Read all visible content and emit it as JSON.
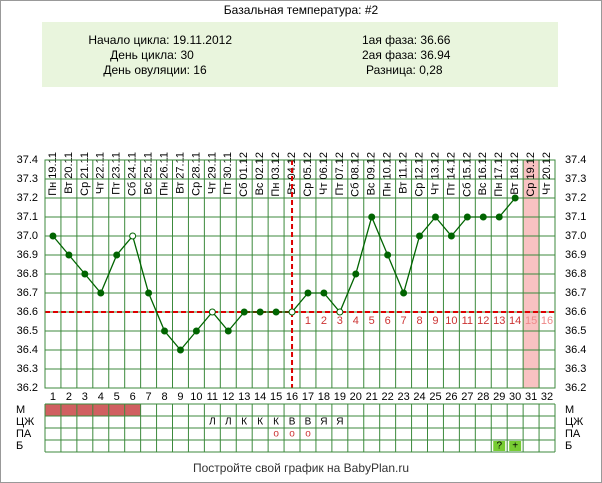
{
  "header": {
    "cycle_start": "Начало цикла: 19.11.2012",
    "cycle_day": "День цикла: 30",
    "ovulation": "День овуляции: 16",
    "phase1": "1ая фаза: 36.66",
    "phase2": "2ая фаза: 36.94",
    "difference": "Разница: 0,28"
  },
  "chart_data": {
    "type": "line",
    "title": "Базальная температура: #2",
    "categories": [
      1,
      2,
      3,
      4,
      5,
      6,
      7,
      8,
      9,
      10,
      11,
      12,
      13,
      14,
      15,
      16,
      17,
      18,
      19,
      20,
      21,
      22,
      23,
      24,
      25,
      26,
      27,
      28,
      29,
      30,
      31,
      32
    ],
    "dates": [
      "Пн 19.11",
      "Вт 20.11",
      "Ср 21.11",
      "Чт 22.11",
      "Пт 23.11",
      "Сб 24.11",
      "Вс 25.11",
      "Пн 26.11",
      "Вт 27.11",
      "Ср 28.11",
      "Чт 29.11",
      "Пт 30.11",
      "Сб 01.12",
      "Вс 02.12",
      "Пн 03.12",
      "Вт 04.12",
      "Ср 05.12",
      "Чт 06.12",
      "Пт 07.12",
      "Сб 08.12",
      "Вс 09.12",
      "Пн 10.12",
      "Вт 11.12",
      "Ср 12.12",
      "Чт 13.12",
      "Пт 14.12",
      "Сб 15.12",
      "Вс 16.12",
      "Пн 17.12",
      "Вт 18.12",
      "Ср 19.12",
      "Чт 20.12"
    ],
    "series": [
      {
        "color": "#006400",
        "values": [
          37.0,
          36.9,
          36.8,
          36.7,
          36.9,
          37.0,
          36.7,
          36.5,
          36.4,
          36.5,
          36.6,
          36.5,
          36.6,
          36.6,
          36.6,
          36.6,
          36.7,
          36.7,
          36.6,
          36.8,
          37.1,
          36.9,
          36.7,
          37.0,
          37.1,
          37.0,
          37.1,
          37.1,
          37.1,
          37.2,
          null,
          null
        ]
      }
    ],
    "hollow_days": [
      6,
      11,
      16,
      19
    ],
    "coverline": 36.6,
    "ovulation_day": 16,
    "highlight_day": 31,
    "luteal_days": [
      1,
      2,
      3,
      4,
      5,
      6,
      7,
      8,
      9,
      10,
      11,
      12,
      13,
      14,
      15,
      16
    ],
    "ylim": [
      36.2,
      37.4
    ],
    "yticks": [
      36.2,
      36.3,
      36.4,
      36.5,
      36.6,
      36.7,
      36.8,
      36.9,
      {
        "value": 37.0,
        "label": "37.0"
      },
      37.1,
      37.2,
      37.3,
      37.4
    ],
    "grid": true
  },
  "table": {
    "rows": [
      {
        "label": "М",
        "days": [
          1,
          2,
          3,
          4,
          5,
          6
        ]
      },
      {
        "label": "ЦЖ",
        "cells": [
          null,
          null,
          null,
          null,
          null,
          null,
          null,
          null,
          null,
          null,
          "Л",
          "Л",
          "К",
          "К",
          "К",
          "В",
          "В",
          "Я",
          "Я",
          null,
          null,
          null,
          null,
          null,
          null,
          null,
          null,
          null,
          null,
          null,
          null,
          null
        ]
      },
      {
        "label": "ПА",
        "cells": [
          null,
          null,
          null,
          null,
          null,
          null,
          null,
          null,
          null,
          null,
          null,
          null,
          null,
          null,
          "о",
          "о",
          "о",
          null,
          null,
          null,
          null,
          null,
          null,
          null,
          null,
          null,
          null,
          null,
          null,
          null,
          null,
          null
        ]
      },
      {
        "label": "Б",
        "cells": [
          null,
          null,
          null,
          null,
          null,
          null,
          null,
          null,
          null,
          null,
          null,
          null,
          null,
          null,
          null,
          null,
          null,
          null,
          null,
          null,
          null,
          null,
          null,
          null,
          null,
          null,
          null,
          null,
          "?",
          "+",
          null,
          null
        ]
      }
    ]
  },
  "footer": "Постройте свой график на BabyPlan.ru"
}
